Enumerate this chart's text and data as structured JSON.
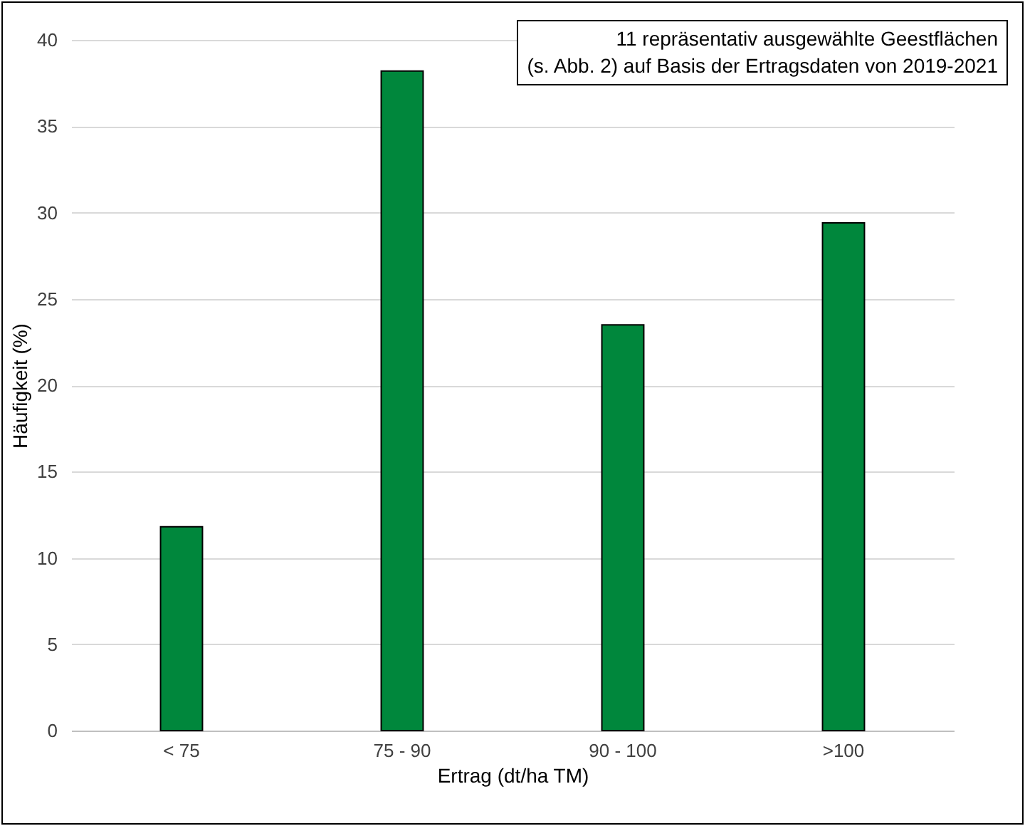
{
  "chart_data": {
    "type": "bar",
    "xlabel": "Ertrag (dt/ha TM)",
    "ylabel": "Häufigkeit (%)",
    "categories": [
      "< 75",
      "75 - 90",
      "90 - 100",
      ">100"
    ],
    "values": [
      11.8,
      38.2,
      23.5,
      29.4
    ],
    "color": "#00873c",
    "ylim": [
      0,
      40
    ],
    "yticks": [
      0,
      5,
      10,
      15,
      20,
      25,
      30,
      35,
      40
    ],
    "grid": "y",
    "annotations": [
      "11 repräsentativ ausgewählte Geestflächen\n(s. Abb. 2) auf Basis der Ertragsdaten von 2019-2021"
    ]
  }
}
